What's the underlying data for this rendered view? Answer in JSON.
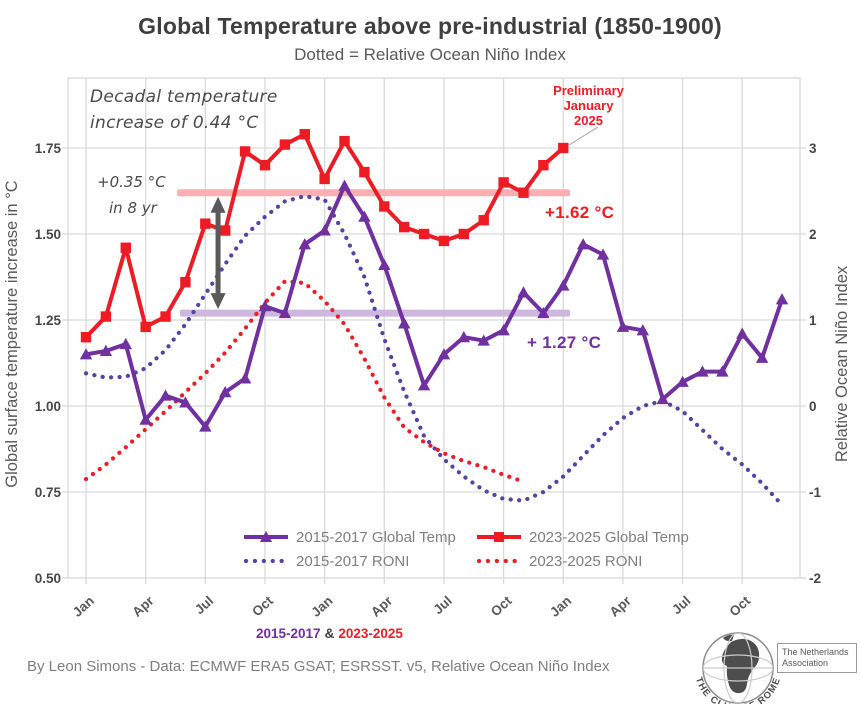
{
  "title": "Global Temperature above pre-industrial (1850-1900)",
  "subtitle": "Dotted = Relative Ocean Niño Index",
  "annotations": {
    "decadal_line1": "Decadal temperature",
    "decadal_line2": "increase of 0.44 °C",
    "increase_line1": "+0.35 °C",
    "increase_line2": "in 8 yr",
    "band_red_label": "+1.62 °C",
    "band_purple_label": "+ 1.27 °C",
    "preliminary_line1": "Preliminary",
    "preliminary_line2": "January",
    "preliminary_line3": "2025"
  },
  "axes": {
    "left": {
      "label": "Global surface temperature increase in °C",
      "ticks": [
        {
          "value": 1.75,
          "label": "1.75"
        },
        {
          "value": 1.5,
          "label": "1.50"
        },
        {
          "value": 1.25,
          "label": "1.25"
        },
        {
          "value": 1.0,
          "label": "1.00"
        },
        {
          "value": 0.75,
          "label": "0.75"
        },
        {
          "value": 0.5,
          "label": "0.50"
        }
      ]
    },
    "right": {
      "label": "Relative Ocean Niño Index",
      "ticks": [
        {
          "value": 3,
          "label": "3"
        },
        {
          "value": 2,
          "label": "2"
        },
        {
          "value": 1,
          "label": "1"
        },
        {
          "value": 0,
          "label": "0"
        },
        {
          "value": -1,
          "label": "-1"
        },
        {
          "value": -2,
          "label": "-2"
        }
      ]
    },
    "x": {
      "tick_labels": [
        "Jan",
        "Apr",
        "Jul",
        "Oct",
        "Jan",
        "Apr",
        "Jul",
        "Oct",
        "Jan",
        "Apr",
        "Jul",
        "Oct"
      ]
    }
  },
  "chart_data": {
    "type": "line",
    "title": "Global Temperature above pre-industrial (1850-1900)",
    "x_axis": "months, Jan of year 1 through Dec of year 3 (2015-2017 overlaid with 2023-2025)",
    "left_axis_range": [
      0.5,
      1.95
    ],
    "right_axis_range": [
      -2.0,
      3.8
    ],
    "grid": true,
    "legend_position": "bottom",
    "series": [
      {
        "name": "2015-2017 Global Temp",
        "style": "solid",
        "marker": "triangle",
        "axis": "left",
        "color_key": "purple",
        "values": [
          1.15,
          1.16,
          1.18,
          0.96,
          1.03,
          1.01,
          0.94,
          1.04,
          1.08,
          1.29,
          1.27,
          1.47,
          1.51,
          1.64,
          1.55,
          1.41,
          1.24,
          1.06,
          1.15,
          1.2,
          1.19,
          1.22,
          1.33,
          1.27,
          1.35,
          1.47,
          1.44,
          1.23,
          1.22,
          1.02,
          1.07,
          1.1,
          1.1,
          1.21,
          1.14,
          1.31
        ]
      },
      {
        "name": "2023-2025 Global Temp",
        "style": "solid",
        "marker": "square",
        "axis": "left",
        "color_key": "red",
        "values": [
          1.2,
          1.26,
          1.46,
          1.23,
          1.26,
          1.36,
          1.53,
          1.51,
          1.74,
          1.7,
          1.76,
          1.79,
          1.66,
          1.77,
          1.68,
          1.58,
          1.52,
          1.5,
          1.48,
          1.5,
          1.54,
          1.65,
          1.62,
          1.7,
          1.75,
          null,
          null,
          null,
          null,
          null,
          null,
          null,
          null,
          null,
          null,
          null
        ]
      },
      {
        "name": "2015-2017 RONI",
        "style": "dotted",
        "marker": "none",
        "axis": "right",
        "color_key": "purple_dotted",
        "values": [
          0.38,
          0.33,
          0.34,
          0.44,
          0.65,
          0.95,
          1.3,
          1.65,
          1.98,
          2.2,
          2.38,
          2.44,
          2.4,
          2.0,
          1.5,
          0.78,
          0.17,
          -0.35,
          -0.62,
          -0.82,
          -0.98,
          -1.08,
          -1.1,
          -1.0,
          -0.82,
          -0.58,
          -0.34,
          -0.14,
          0.0,
          0.06,
          -0.06,
          -0.28,
          -0.5,
          -0.68,
          -0.9,
          -1.15
        ]
      },
      {
        "name": "2023-2025 RONI",
        "style": "dotted",
        "marker": "none",
        "axis": "right",
        "color_key": "red",
        "values": [
          -0.85,
          -0.68,
          -0.48,
          -0.27,
          -0.06,
          0.16,
          0.38,
          0.62,
          0.9,
          1.2,
          1.45,
          1.43,
          1.22,
          0.95,
          0.55,
          0.1,
          -0.25,
          -0.42,
          -0.55,
          -0.64,
          -0.71,
          -0.8,
          -0.88,
          null,
          null,
          null,
          null,
          null,
          null,
          null,
          null,
          null,
          null,
          null,
          null,
          null
        ]
      }
    ],
    "bands": [
      {
        "value": 1.62,
        "from_month": 4.58,
        "to_month": 24.34,
        "color_key": "pink_band",
        "label": "+1.62 °C"
      },
      {
        "value": 1.27,
        "from_month": 4.72,
        "to_month": 24.34,
        "color_key": "lavender_band",
        "label": "+ 1.27 °C"
      }
    ],
    "arrow": {
      "month": 6.64,
      "from_value": 1.27,
      "to_value": 1.62,
      "meaning": "+0.35 °C in 8 yr"
    }
  },
  "footer": {
    "range_purple": "2015-2017",
    "amp": "&",
    "range_red": "2023-2025",
    "credit": "By Leon Simons - Data: ECMWF ERA5 GSAT; ESRSST. v5, Relative Ocean Niño Index"
  },
  "logo": {
    "club": "THE CLUB OF ROME",
    "org_line1": "The Netherlands",
    "org_line2": "Association"
  },
  "colors": {
    "red": "#ed1c24",
    "purple": "#7030a0",
    "purple_dotted": "#5442a4",
    "pink_band": "#f8b0b2",
    "lavender_band": "#cdb7de",
    "grid": "#d9d9d9",
    "arrow": "#595959",
    "callout": "#b3b3b3",
    "title_text": "#3f3f3f",
    "gray_text": "#595959",
    "light_gray_text": "#7f7f7f",
    "tick_text": "#474747"
  }
}
